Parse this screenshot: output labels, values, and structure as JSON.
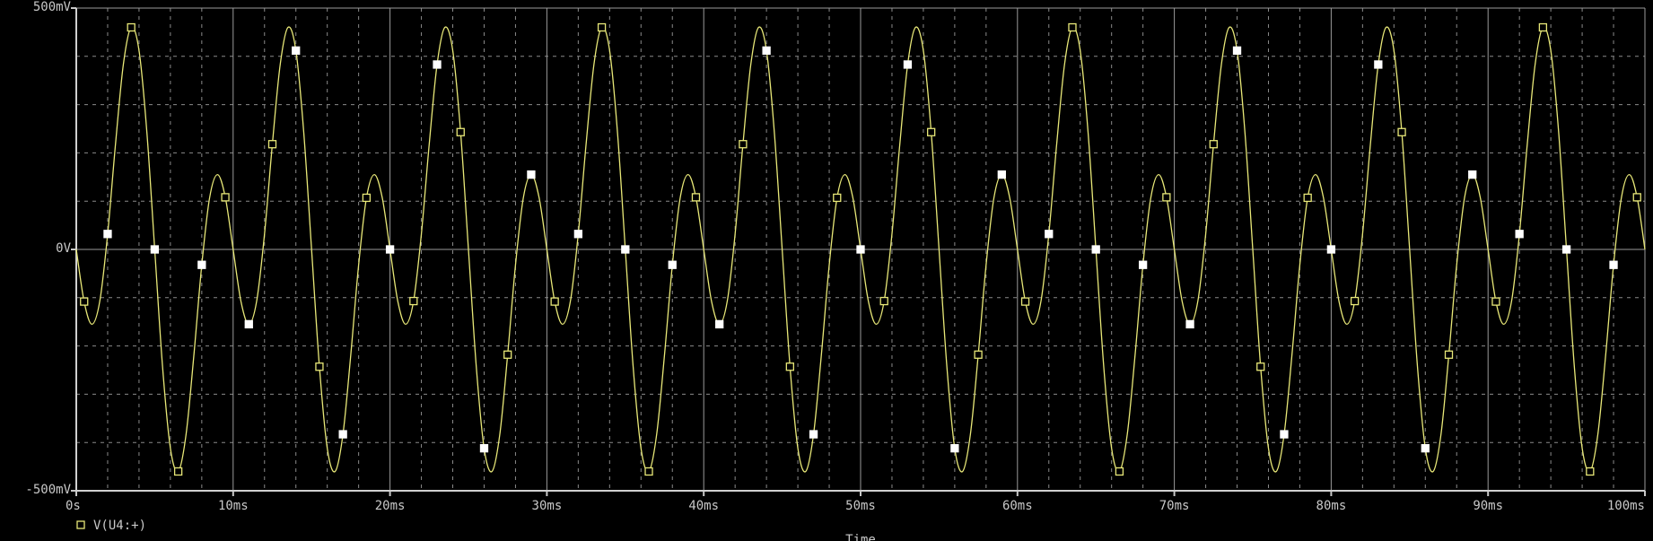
{
  "chart_data": {
    "type": "line",
    "x_label": "Time",
    "x": [
      0,
      0.5,
      1,
      1.5,
      2,
      2.5,
      3,
      3.5,
      4,
      4.5,
      5,
      5.5,
      6,
      6.5,
      7,
      7.5,
      8,
      8.5,
      9,
      9.5,
      10,
      10.5,
      11,
      11.5,
      12,
      12.5,
      13,
      13.5,
      14,
      14.5,
      15,
      15.5,
      16,
      16.5,
      17,
      17.5,
      18,
      18.5,
      19,
      19.5,
      20,
      20.5,
      21,
      21.5,
      22,
      22.5,
      23,
      23.5,
      24,
      24.5,
      25,
      25.5,
      26,
      26.5,
      27,
      27.5,
      28,
      28.5,
      29,
      29.5,
      30,
      30.5,
      31,
      31.5,
      32,
      32.5,
      33,
      33.5,
      34,
      34.5,
      35,
      35.5,
      36,
      36.5,
      37,
      37.5,
      38,
      38.5,
      39,
      39.5,
      40,
      40.5,
      41,
      41.5,
      42,
      42.5,
      43,
      43.5,
      44,
      44.5,
      45,
      45.5,
      46,
      46.5,
      47,
      47.5,
      48,
      48.5,
      49,
      49.5,
      50,
      50.5,
      51,
      51.5,
      52,
      52.5,
      53,
      53.5,
      54,
      54.5,
      55,
      55.5,
      56,
      56.5,
      57,
      57.5,
      58,
      58.5,
      59,
      59.5,
      60,
      60.5,
      61,
      61.5,
      62,
      62.5,
      63,
      63.5,
      64,
      64.5,
      65,
      65.5,
      66,
      66.5,
      67,
      67.5,
      68,
      68.5,
      69,
      69.5,
      70,
      70.5,
      71,
      71.5,
      72,
      72.5,
      73,
      73.5,
      74,
      74.5,
      75,
      75.5,
      76,
      76.5,
      77,
      77.5,
      78,
      78.5,
      79,
      79.5,
      80,
      80.5,
      81,
      81.5,
      82,
      82.5,
      83,
      83.5,
      84,
      84.5,
      85,
      85.5,
      86,
      86.5,
      87,
      87.5,
      88,
      88.5,
      89,
      89.5,
      90,
      90.5,
      91,
      91.5,
      92,
      92.5,
      93,
      93.5,
      94,
      94.5,
      95,
      95.5,
      96,
      96.5,
      97,
      97.5,
      98,
      98.5,
      99,
      99.5,
      100
    ],
    "series": [
      {
        "name": "V(U4:+)",
        "color": "#e8e878",
        "values": [
          0,
          -108,
          -155,
          -107,
          32,
          218,
          383,
          460,
          412,
          243,
          0,
          -243,
          -412,
          -460,
          -383,
          -218,
          -32,
          107,
          155,
          108,
          0,
          -108,
          -155,
          -107,
          32,
          218,
          383,
          460,
          412,
          243,
          0,
          -243,
          -412,
          -460,
          -383,
          -218,
          -32,
          107,
          155,
          108,
          0,
          -108,
          -155,
          -107,
          32,
          218,
          383,
          460,
          412,
          243,
          0,
          -243,
          -412,
          -460,
          -383,
          -218,
          -32,
          107,
          155,
          108,
          0,
          -108,
          -155,
          -107,
          32,
          218,
          383,
          460,
          412,
          243,
          0,
          -243,
          -412,
          -460,
          -383,
          -218,
          -32,
          107,
          155,
          108,
          0,
          -108,
          -155,
          -107,
          32,
          218,
          383,
          460,
          412,
          243,
          0,
          -243,
          -412,
          -460,
          -383,
          -218,
          -32,
          107,
          155,
          108,
          0,
          -108,
          -155,
          -107,
          32,
          218,
          383,
          460,
          412,
          243,
          0,
          -243,
          -412,
          -460,
          -383,
          -218,
          -32,
          107,
          155,
          108,
          0,
          -108,
          -155,
          -107,
          32,
          218,
          383,
          460,
          412,
          243,
          0,
          -243,
          -412,
          -460,
          -383,
          -218,
          -32,
          107,
          155,
          108,
          0,
          -108,
          -155,
          -107,
          32,
          218,
          383,
          460,
          412,
          243,
          0,
          -243,
          -412,
          -460,
          -383,
          -218,
          -32,
          107,
          155,
          108,
          0,
          -108,
          -155,
          -107,
          32,
          218,
          383,
          460,
          412,
          243,
          0,
          -243,
          -412,
          -460,
          -383,
          -218,
          -32,
          107,
          155,
          108,
          0,
          -108,
          -155,
          -107,
          32,
          218,
          383,
          460,
          412,
          243,
          0,
          -243,
          -412,
          -460,
          -383,
          -218,
          -32,
          107,
          155,
          108,
          0
        ]
      }
    ],
    "xlim": [
      0,
      100
    ],
    "xticks": [
      {
        "value": 0,
        "label": "0s"
      },
      {
        "value": 10,
        "label": "10ms"
      },
      {
        "value": 20,
        "label": "20ms"
      },
      {
        "value": 30,
        "label": "30ms"
      },
      {
        "value": 40,
        "label": "40ms"
      },
      {
        "value": 50,
        "label": "50ms"
      },
      {
        "value": 60,
        "label": "60ms"
      },
      {
        "value": 70,
        "label": "70ms"
      },
      {
        "value": 80,
        "label": "80ms"
      },
      {
        "value": 90,
        "label": "90ms"
      },
      {
        "value": 100,
        "label": "100ms"
      }
    ],
    "xminor": [
      2,
      4,
      6,
      8,
      12,
      14,
      16,
      18,
      22,
      24,
      26,
      28,
      32,
      34,
      36,
      38,
      42,
      44,
      46,
      48,
      52,
      54,
      56,
      58,
      62,
      64,
      66,
      68,
      72,
      74,
      76,
      78,
      82,
      84,
      86,
      88,
      92,
      94,
      96,
      98
    ],
    "ylim": [
      -500,
      500
    ],
    "yticks": [
      {
        "value": -500,
        "label": "-500mV"
      },
      {
        "value": 0,
        "label": "0V"
      },
      {
        "value": 500,
        "label": "500mV"
      }
    ],
    "yminor": [
      -400,
      -300,
      -200,
      -100,
      100,
      200,
      300,
      400
    ],
    "grid": true
  }
}
